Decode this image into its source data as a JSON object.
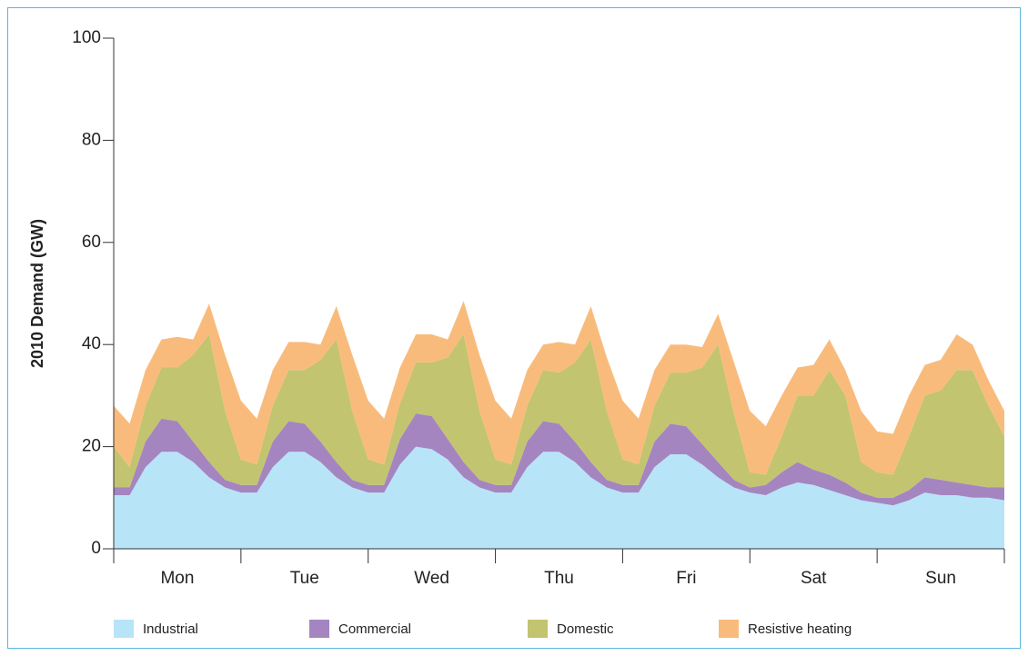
{
  "chart_data": {
    "type": "stacked_area",
    "y_label": "2010 Demand (GW)",
    "categories": [
      "Mon",
      "Tue",
      "Wed",
      "Thu",
      "Fri",
      "Sat",
      "Sun"
    ],
    "x": [
      0,
      3,
      6,
      9,
      12,
      15,
      18,
      21,
      24,
      27,
      30,
      33,
      36,
      39,
      42,
      45,
      48,
      51,
      54,
      57,
      60,
      63,
      66,
      69,
      72,
      75,
      78,
      81,
      84,
      87,
      90,
      93,
      96,
      99,
      102,
      105,
      108,
      111,
      114,
      117,
      120,
      123,
      126,
      129,
      132,
      135,
      138,
      141,
      144,
      147,
      150,
      153,
      156,
      159,
      162,
      165,
      168
    ],
    "xlim": [
      0,
      168
    ],
    "xticks": [
      0,
      24,
      48,
      72,
      96,
      120,
      144,
      168
    ],
    "ylim": [
      0,
      100
    ],
    "yticks": [
      0,
      20,
      40,
      60,
      80,
      100
    ],
    "series": [
      {
        "name": "Industrial",
        "color": "#b8e4f8",
        "values": [
          10.5,
          10.5,
          16,
          19,
          19,
          17,
          14,
          12,
          11,
          11,
          16,
          19,
          19,
          17,
          14,
          12,
          11,
          11,
          16.5,
          20,
          19.5,
          17.5,
          14,
          12,
          11,
          11,
          16,
          19,
          19,
          17,
          14,
          12,
          11,
          11,
          16,
          18.5,
          18.5,
          16.5,
          14,
          12,
          11,
          10.5,
          12,
          13,
          12.5,
          11.5,
          10.5,
          9.5,
          9,
          8.5,
          9.5,
          11,
          10.5,
          10.5,
          10,
          10,
          9.5
        ]
      },
      {
        "name": "Commercial",
        "color": "#a585c0",
        "values": [
          1.5,
          1.5,
          5,
          6.5,
          6,
          4,
          3,
          1.5,
          1.5,
          1.5,
          5,
          6,
          5.5,
          4,
          3,
          1.5,
          1.5,
          1.5,
          5,
          6.5,
          6.5,
          4,
          3,
          1.5,
          1.5,
          1.5,
          5,
          6,
          5.5,
          4,
          3,
          1.5,
          1.5,
          1.5,
          5,
          6,
          5.5,
          4,
          3,
          1.5,
          1,
          2,
          3,
          4,
          3,
          3,
          2.5,
          1.5,
          1,
          1.5,
          2,
          3,
          3,
          2.5,
          2.5,
          2,
          2.5
        ]
      },
      {
        "name": "Domestic",
        "color": "#c3c46f",
        "values": [
          8,
          4,
          7,
          10,
          10.5,
          17,
          25,
          13.5,
          5,
          4,
          7,
          10,
          10.5,
          16,
          24,
          13.5,
          5,
          4,
          7,
          10,
          10.5,
          16,
          25,
          13.5,
          5,
          4,
          7,
          10,
          10,
          15.5,
          24,
          13.5,
          5,
          4,
          7,
          10,
          10.5,
          15,
          23,
          13,
          3,
          2,
          7,
          13,
          14.5,
          20.5,
          17,
          6,
          5,
          4.5,
          10.5,
          16,
          17.5,
          22,
          22.5,
          16,
          10
        ]
      },
      {
        "name": "Resistive heating",
        "color": "#f9bb7c",
        "values": [
          8,
          8.5,
          7,
          5.5,
          6,
          3,
          6,
          11,
          11.5,
          9,
          7,
          5.5,
          5.5,
          3,
          6.5,
          11,
          11.5,
          9,
          7,
          5.5,
          5.5,
          3.5,
          6.5,
          11,
          11.5,
          9,
          7,
          5,
          6,
          3.5,
          6.5,
          10.5,
          11.5,
          9,
          7,
          5.5,
          5.5,
          4,
          6,
          10,
          12,
          9.5,
          8,
          5.5,
          6,
          6,
          5,
          10,
          8,
          8,
          8,
          6,
          6,
          7,
          5,
          5,
          5
        ]
      }
    ]
  }
}
